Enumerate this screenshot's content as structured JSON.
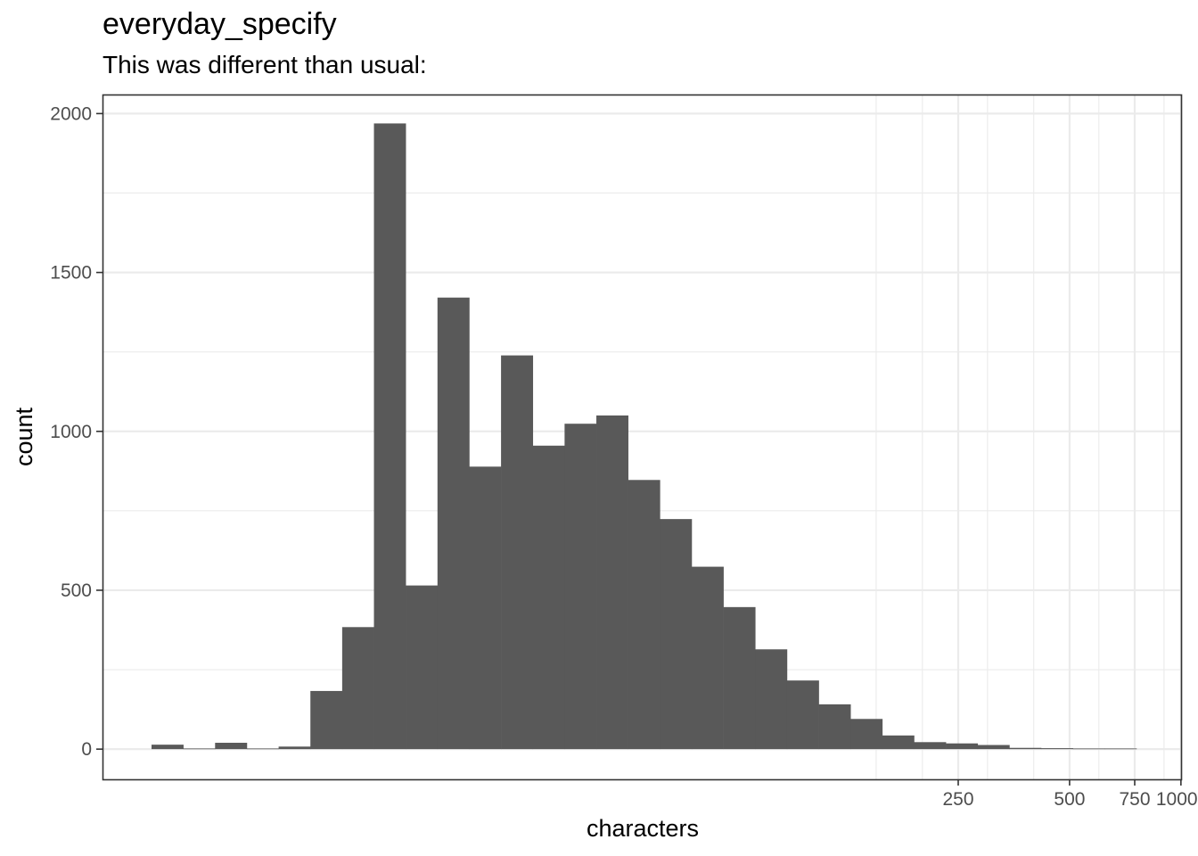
{
  "chart_data": {
    "type": "bar",
    "title": "everyday_specify",
    "subtitle": "This was different than usual:",
    "xlabel": "characters",
    "ylabel": "count",
    "x_scale": "log10",
    "x_ticks": [
      250,
      500,
      750,
      1000
    ],
    "x_tick_labels": [
      "250",
      "500",
      "750",
      "1000"
    ],
    "y_ticks": [
      0,
      500,
      1000,
      1500,
      2000
    ],
    "y_tick_labels": [
      "0",
      "500",
      "1000",
      "1500",
      "2000"
    ],
    "ylim": [
      -95,
      2060
    ],
    "grid": true,
    "bar_color": "#595959",
    "bins": [
      {
        "value": 14
      },
      {
        "value": 2
      },
      {
        "value": 20
      },
      {
        "value": 2
      },
      {
        "value": 8
      },
      {
        "value": 183
      },
      {
        "value": 384
      },
      {
        "value": 1969
      },
      {
        "value": 515
      },
      {
        "value": 1421
      },
      {
        "value": 889
      },
      {
        "value": 1239
      },
      {
        "value": 955
      },
      {
        "value": 1024
      },
      {
        "value": 1050
      },
      {
        "value": 847
      },
      {
        "value": 724
      },
      {
        "value": 574
      },
      {
        "value": 447
      },
      {
        "value": 314
      },
      {
        "value": 216
      },
      {
        "value": 141
      },
      {
        "value": 95
      },
      {
        "value": 43
      },
      {
        "value": 22
      },
      {
        "value": 18
      },
      {
        "value": 13
      },
      {
        "value": 4
      },
      {
        "value": 3
      },
      {
        "value": 2
      },
      {
        "value": 2
      }
    ]
  }
}
